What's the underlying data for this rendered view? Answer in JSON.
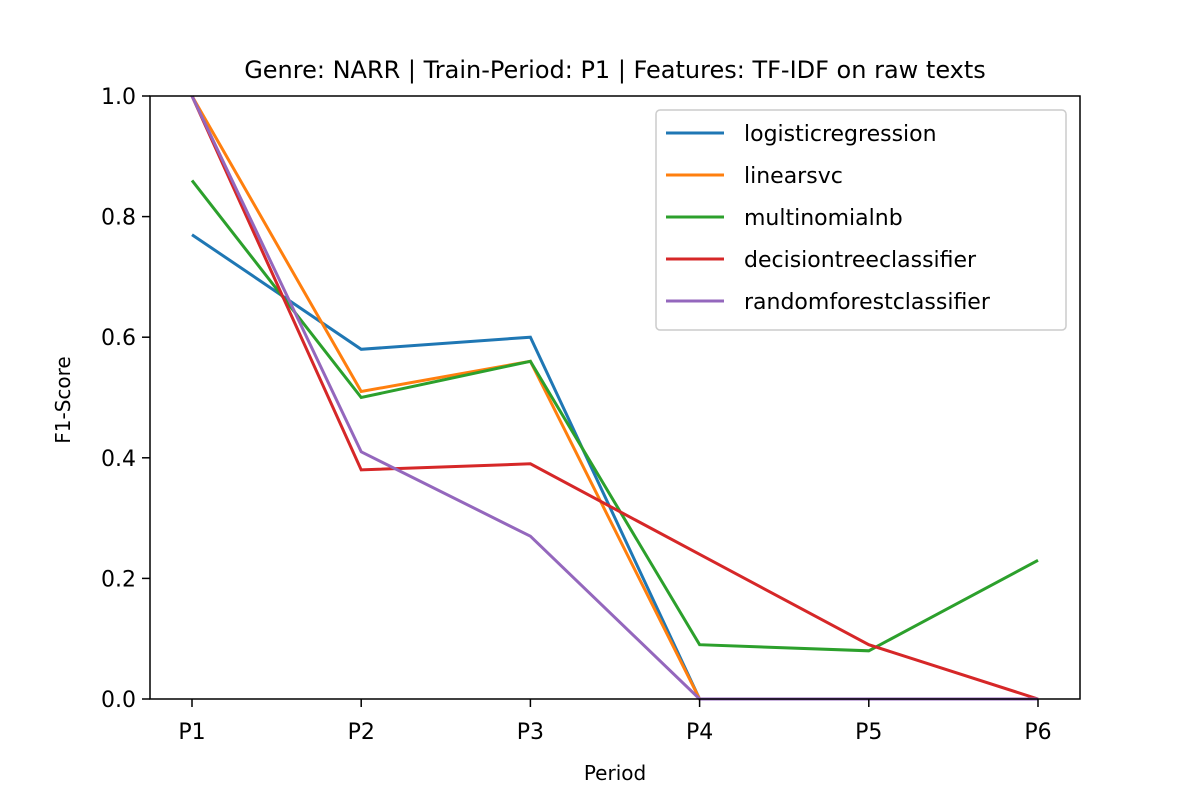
{
  "chart_data": {
    "type": "line",
    "title": "Genre: NARR | Train-Period: P1 | Features: TF-IDF on raw texts",
    "xlabel": "Period",
    "ylabel": "F1-Score",
    "categories": [
      "P1",
      "P2",
      "P3",
      "P4",
      "P5",
      "P6"
    ],
    "ylim": [
      0.0,
      1.0
    ],
    "yticks": [
      0.0,
      0.2,
      0.4,
      0.6,
      0.8,
      1.0
    ],
    "ytick_labels": [
      "0.0",
      "0.2",
      "0.4",
      "0.6",
      "0.8",
      "1.0"
    ],
    "grid": false,
    "legend_position": "top-right",
    "series": [
      {
        "name": "logisticregression",
        "color": "#1f77b4",
        "values": [
          0.77,
          0.58,
          0.6,
          0.0,
          0.0,
          0.0
        ]
      },
      {
        "name": "linearsvc",
        "color": "#ff7f0e",
        "values": [
          1.0,
          0.51,
          0.56,
          0.0,
          0.0,
          0.0
        ]
      },
      {
        "name": "multinomialnb",
        "color": "#2ca02c",
        "values": [
          0.86,
          0.5,
          0.56,
          0.09,
          0.08,
          0.23
        ]
      },
      {
        "name": "decisiontreeclassifier",
        "color": "#d62728",
        "values": [
          1.0,
          0.38,
          0.39,
          0.24,
          0.09,
          0.0
        ]
      },
      {
        "name": "randomforestclassifier",
        "color": "#9467bd",
        "values": [
          1.0,
          0.41,
          0.27,
          0.0,
          0.0,
          0.0
        ]
      }
    ]
  }
}
